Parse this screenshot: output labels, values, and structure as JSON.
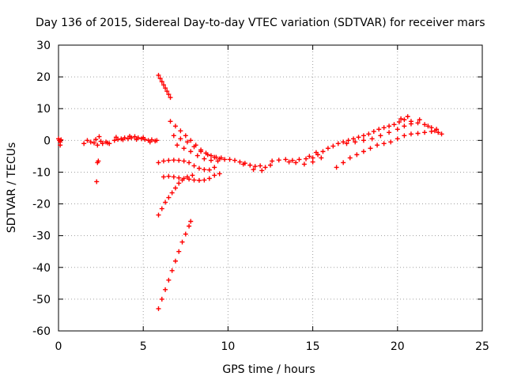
{
  "chart_data": {
    "type": "scatter",
    "title": "Day 136 of 2015, Sidereal Day-to-day VTEC variation (SDTVAR) for receiver mars",
    "xlabel": "GPS time / hours",
    "ylabel": "SDTVAR / TECUs",
    "xlim": [
      0,
      25
    ],
    "ylim": [
      -60,
      30
    ],
    "xticks": [
      0,
      5,
      10,
      15,
      20,
      25
    ],
    "yticks": [
      30,
      20,
      10,
      0,
      -10,
      -20,
      -30,
      -40,
      -50,
      -60
    ],
    "grid": true,
    "marker": "plus",
    "marker_color": "#ff0000",
    "series": [
      {
        "points": [
          [
            0.0,
            0.5
          ],
          [
            0.05,
            0.0
          ],
          [
            0.1,
            -0.5
          ],
          [
            0.1,
            -1.5
          ],
          [
            0.15,
            0.2
          ],
          [
            1.5,
            -1.0
          ],
          [
            1.7,
            0.0
          ],
          [
            1.9,
            -0.5
          ],
          [
            2.1,
            -0.8
          ],
          [
            2.2,
            0.3
          ],
          [
            2.3,
            -1.5
          ],
          [
            2.4,
            1.2
          ],
          [
            2.5,
            -0.3
          ],
          [
            2.6,
            -1.0
          ],
          [
            2.8,
            -0.5
          ],
          [
            2.9,
            -0.8
          ],
          [
            3.0,
            -1.0
          ],
          [
            2.35,
            -6.5
          ],
          [
            2.3,
            -7.0
          ],
          [
            2.25,
            -13.0
          ],
          [
            3.3,
            0.0
          ],
          [
            3.5,
            0.3
          ],
          [
            3.7,
            0.5
          ],
          [
            3.9,
            0.8
          ],
          [
            4.1,
            0.5
          ],
          [
            4.3,
            0.8
          ],
          [
            4.5,
            1.2
          ],
          [
            4.7,
            0.8
          ],
          [
            4.9,
            0.5
          ],
          [
            5.1,
            0.3
          ],
          [
            5.3,
            0.0
          ],
          [
            5.5,
            0.2
          ],
          [
            5.7,
            -0.2
          ],
          [
            5.8,
            0.0
          ],
          [
            3.4,
            1.0
          ],
          [
            3.8,
            0.2
          ],
          [
            4.2,
            1.3
          ],
          [
            4.6,
            0.3
          ],
          [
            5.0,
            0.9
          ],
          [
            5.4,
            -0.5
          ]
        ]
      },
      {
        "points": [
          [
            5.9,
            20.5
          ],
          [
            6.0,
            19.5
          ],
          [
            6.1,
            18.5
          ],
          [
            6.2,
            17.5
          ],
          [
            6.3,
            16.5
          ],
          [
            6.4,
            15.5
          ],
          [
            6.5,
            14.5
          ],
          [
            6.6,
            13.5
          ]
        ]
      },
      {
        "points": [
          [
            6.6,
            6.0
          ],
          [
            6.9,
            4.5
          ],
          [
            7.2,
            3.0
          ],
          [
            7.5,
            1.5
          ],
          [
            7.8,
            0.0
          ],
          [
            8.1,
            -1.5
          ],
          [
            8.4,
            -3.0
          ],
          [
            8.7,
            -4.0
          ],
          [
            9.0,
            -4.8
          ],
          [
            9.3,
            -5.3
          ],
          [
            9.6,
            -5.5
          ]
        ]
      },
      {
        "points": [
          [
            6.8,
            1.5
          ],
          [
            7.2,
            0.5
          ],
          [
            7.6,
            -0.5
          ],
          [
            8.0,
            -2.0
          ],
          [
            8.4,
            -3.5
          ],
          [
            8.8,
            -4.5
          ],
          [
            9.2,
            -5.3
          ]
        ]
      },
      {
        "points": [
          [
            7.0,
            -1.5
          ],
          [
            7.4,
            -2.5
          ],
          [
            7.8,
            -3.5
          ],
          [
            8.2,
            -4.8
          ],
          [
            8.6,
            -5.8
          ],
          [
            9.0,
            -6.3
          ],
          [
            9.4,
            -6.5
          ]
        ]
      },
      {
        "points": [
          [
            5.9,
            -7.0
          ],
          [
            6.2,
            -6.5
          ],
          [
            6.5,
            -6.3
          ],
          [
            6.8,
            -6.2
          ],
          [
            7.1,
            -6.3
          ],
          [
            7.4,
            -6.5
          ],
          [
            7.7,
            -7.0
          ],
          [
            8.0,
            -8.0
          ],
          [
            8.3,
            -8.8
          ],
          [
            8.6,
            -9.2
          ],
          [
            8.9,
            -9.3
          ],
          [
            9.2,
            -8.5
          ]
        ]
      },
      {
        "points": [
          [
            6.2,
            -11.5
          ],
          [
            6.5,
            -11.3
          ],
          [
            6.8,
            -11.5
          ],
          [
            7.1,
            -11.8
          ],
          [
            7.4,
            -12.0
          ],
          [
            7.7,
            -12.2
          ],
          [
            8.0,
            -12.5
          ],
          [
            8.3,
            -12.6
          ],
          [
            8.6,
            -12.5
          ],
          [
            8.9,
            -12.0
          ],
          [
            9.2,
            -11.0
          ],
          [
            9.5,
            -10.5
          ]
        ]
      },
      {
        "points": [
          [
            5.9,
            -23.5
          ],
          [
            6.1,
            -21.5
          ],
          [
            6.3,
            -19.5
          ],
          [
            6.5,
            -18.0
          ],
          [
            6.7,
            -16.5
          ],
          [
            6.9,
            -15.0
          ],
          [
            7.1,
            -13.5
          ],
          [
            7.3,
            -12.5
          ],
          [
            7.6,
            -11.5
          ],
          [
            7.9,
            -11.0
          ]
        ]
      },
      {
        "points": [
          [
            5.9,
            -53.0
          ],
          [
            6.1,
            -50.0
          ],
          [
            6.3,
            -47.0
          ],
          [
            6.5,
            -44.0
          ],
          [
            6.7,
            -41.0
          ],
          [
            6.9,
            -38.0
          ],
          [
            7.1,
            -35.0
          ],
          [
            7.3,
            -32.0
          ],
          [
            7.5,
            -29.5
          ],
          [
            7.7,
            -27.0
          ],
          [
            7.8,
            -25.5
          ]
        ]
      },
      {
        "points": [
          [
            9.5,
            -5.8
          ],
          [
            9.8,
            -6.0
          ],
          [
            10.1,
            -6.0
          ],
          [
            10.4,
            -6.3
          ],
          [
            10.7,
            -6.8
          ],
          [
            11.0,
            -7.2
          ],
          [
            11.3,
            -7.8
          ],
          [
            11.6,
            -8.2
          ],
          [
            11.9,
            -8.0
          ],
          [
            12.2,
            -8.5
          ],
          [
            12.5,
            -7.8
          ],
          [
            11.5,
            -9.2
          ],
          [
            12.0,
            -9.5
          ],
          [
            10.9,
            -7.5
          ]
        ]
      },
      {
        "points": [
          [
            12.6,
            -6.5
          ],
          [
            13.0,
            -6.2
          ],
          [
            13.4,
            -6.0
          ],
          [
            13.8,
            -6.3
          ],
          [
            14.2,
            -6.0
          ],
          [
            14.6,
            -5.8
          ],
          [
            15.0,
            -5.5
          ],
          [
            15.3,
            -4.5
          ],
          [
            15.6,
            -3.5
          ],
          [
            15.9,
            -2.5
          ],
          [
            16.2,
            -1.8
          ],
          [
            16.5,
            -1.0
          ],
          [
            16.8,
            -0.5
          ],
          [
            17.1,
            0.0
          ],
          [
            17.4,
            0.5
          ],
          [
            17.7,
            1.0
          ],
          [
            18.0,
            1.5
          ],
          [
            18.3,
            2.0
          ],
          [
            18.6,
            2.8
          ],
          [
            18.9,
            3.5
          ],
          [
            19.2,
            4.0
          ],
          [
            19.5,
            4.5
          ],
          [
            19.8,
            5.0
          ],
          [
            20.1,
            5.8
          ],
          [
            20.4,
            6.5
          ],
          [
            20.6,
            7.5
          ],
          [
            14.0,
            -7.0
          ],
          [
            14.5,
            -7.5
          ],
          [
            15.0,
            -6.8
          ],
          [
            15.5,
            -5.5
          ],
          [
            14.8,
            -5.0
          ],
          [
            15.2,
            -3.8
          ],
          [
            13.6,
            -6.8
          ]
        ]
      },
      {
        "points": [
          [
            16.4,
            -8.5
          ],
          [
            16.8,
            -7.0
          ],
          [
            17.2,
            -5.5
          ],
          [
            17.6,
            -4.5
          ],
          [
            18.0,
            -3.5
          ],
          [
            18.4,
            -2.5
          ],
          [
            18.8,
            -1.5
          ],
          [
            19.2,
            -1.0
          ],
          [
            19.6,
            -0.5
          ],
          [
            20.0,
            0.5
          ],
          [
            20.4,
            1.5
          ],
          [
            20.8,
            2.0
          ],
          [
            21.2,
            2.2
          ],
          [
            21.6,
            2.5
          ],
          [
            22.0,
            2.8
          ],
          [
            22.4,
            2.5
          ],
          [
            22.6,
            2.0
          ]
        ]
      },
      {
        "points": [
          [
            17.0,
            -1.0
          ],
          [
            17.5,
            -0.5
          ],
          [
            18.0,
            0.0
          ],
          [
            18.5,
            0.5
          ],
          [
            19.0,
            1.5
          ],
          [
            19.5,
            2.5
          ],
          [
            20.0,
            3.5
          ],
          [
            20.4,
            4.5
          ],
          [
            20.8,
            5.2
          ],
          [
            21.2,
            5.5
          ],
          [
            21.6,
            5.0
          ],
          [
            22.0,
            4.0
          ],
          [
            22.3,
            3.5
          ],
          [
            20.2,
            6.8
          ],
          [
            20.8,
            6.0
          ],
          [
            21.3,
            6.5
          ],
          [
            21.8,
            4.5
          ],
          [
            22.2,
            3.0
          ]
        ]
      }
    ]
  }
}
